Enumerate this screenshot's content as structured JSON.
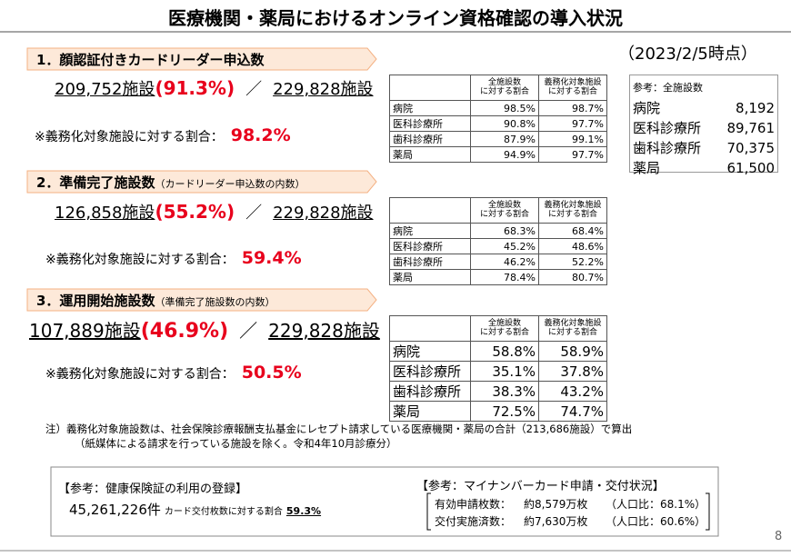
{
  "title": "医療機関・薬局におけるオンライン資格確認の導入状況",
  "date": "（2023/2/5時点）",
  "page_number": "8",
  "sections": [
    {
      "heading": "1．顔認証付きカードリーダー申込数",
      "count": "209,752施設",
      "percent": "(91.3%)",
      "separator": "／",
      "total": "229,828施設",
      "ratio_label": "※義務化対象施設に対する割合：",
      "ratio_value": "98.2%",
      "table": {
        "header": [
          "全施設数\nに対する割合",
          "義務化対象施設\nに対する割合"
        ],
        "rows": [
          [
            "病院",
            "98.5%",
            "98.7%"
          ],
          [
            "医科診療所",
            "90.8%",
            "97.7%"
          ],
          [
            "歯科診療所",
            "87.9%",
            "99.1%"
          ],
          [
            "薬局",
            "94.9%",
            "97.7%"
          ]
        ]
      }
    },
    {
      "heading": "2．準備完了施設数",
      "heading_note": "（カードリーダー申込数の内数）",
      "count": "126,858施設",
      "percent": "(55.2%)",
      "separator": "／",
      "total": "229,828施設",
      "ratio_label": "※義務化対象施設に対する割合：",
      "ratio_value": "59.4%",
      "table": {
        "header": [
          "全施設数\nに対する割合",
          "義務化対象施設\nに対する割合"
        ],
        "rows": [
          [
            "病院",
            "68.3%",
            "68.4%"
          ],
          [
            "医科診療所",
            "45.2%",
            "48.6%"
          ],
          [
            "歯科診療所",
            "46.2%",
            "52.2%"
          ],
          [
            "薬局",
            "78.4%",
            "80.7%"
          ]
        ]
      }
    },
    {
      "heading": "3．運用開始施設数",
      "heading_note": "（準備完了施設数の内数）",
      "count": "107,889施設",
      "percent": "(46.9%)",
      "separator": "／",
      "total": "229,828施設",
      "ratio_label": "※義務化対象施設に対する割合：",
      "ratio_value": "50.5%",
      "table": {
        "header": [
          "全施設数\nに対する割合",
          "義務化対象施設\nに対する割合"
        ],
        "rows": [
          [
            "病院",
            "58.8%",
            "58.9%"
          ],
          [
            "医科診療所",
            "35.1%",
            "37.8%"
          ],
          [
            "歯科診療所",
            "38.3%",
            "43.2%"
          ],
          [
            "薬局",
            "72.5%",
            "74.7%"
          ]
        ]
      }
    }
  ],
  "reference": {
    "title": "参考：全施設数",
    "rows": [
      [
        "病院",
        "8,192"
      ],
      [
        "医科診療所",
        "89,761"
      ],
      [
        "歯科診療所",
        "70,375"
      ],
      [
        "薬局",
        "61,500"
      ]
    ]
  },
  "note": [
    "注）義務化対象施設数は、社会保険診療報酬支払基金にレセプト請求している医療機関・薬局の合計（213,686施設）で算出",
    "（紙媒体による請求を行っている施設を除く。令和4年10月診療分）"
  ],
  "insurance": {
    "title": "【参考：健康保険証の利用の登録】",
    "count": "45,261,226件",
    "ratio_label": "カード交付枚数に対する割合",
    "ratio_value": "59.3%"
  },
  "mynumber": {
    "title": "【参考：マイナンバーカード申請・交付状況】",
    "rows": [
      [
        "有効申請枚数：",
        "約8,579万枚",
        "（人口比：68.1%）"
      ],
      [
        "交付実施済数：",
        "約7,630万枚",
        "（人口比：60.6%）"
      ]
    ]
  }
}
